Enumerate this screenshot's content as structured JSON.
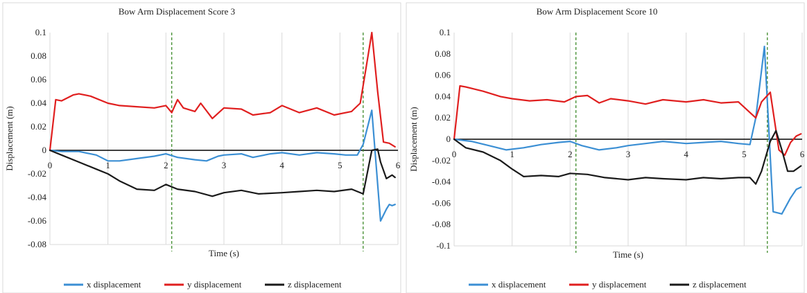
{
  "chart_data": [
    {
      "type": "line",
      "title": "Bow Arm Displacement Score 3",
      "xlabel": "Time (s)",
      "ylabel": "Displacement  (m)",
      "xlim": [
        0,
        6
      ],
      "ylim": [
        -0.08,
        0.1
      ],
      "xticks": [
        0,
        1,
        2,
        3,
        4,
        5,
        6
      ],
      "yticks": [
        -0.08,
        -0.06,
        -0.04,
        -0.02,
        0,
        0.02,
        0.04,
        0.06,
        0.08,
        0.1
      ],
      "ytick_labels": [
        "-0.08",
        "-0.06",
        "-0.04",
        "-0.02",
        "0",
        "0.02",
        "0.04",
        "0.06",
        "0.08",
        "0.1"
      ],
      "grid": true,
      "legend_position": "bottom",
      "vlines": [
        2.1,
        5.4
      ],
      "series": [
        {
          "name": "x displacement",
          "color": "#3b8fd4",
          "x": [
            0,
            0.2,
            0.5,
            0.8,
            1.0,
            1.2,
            1.5,
            1.8,
            2.0,
            2.2,
            2.5,
            2.7,
            2.9,
            3.0,
            3.3,
            3.5,
            3.8,
            4.0,
            4.3,
            4.6,
            4.9,
            5.1,
            5.3,
            5.4,
            5.55,
            5.7,
            5.8,
            5.85,
            5.9,
            5.95
          ],
          "y": [
            0,
            -0.001,
            -0.001,
            -0.004,
            -0.009,
            -0.009,
            -0.007,
            -0.005,
            -0.003,
            -0.006,
            -0.008,
            -0.009,
            -0.005,
            -0.004,
            -0.003,
            -0.006,
            -0.003,
            -0.002,
            -0.004,
            -0.002,
            -0.003,
            -0.004,
            -0.004,
            0.005,
            0.034,
            -0.06,
            -0.05,
            -0.046,
            -0.047,
            -0.046
          ]
        },
        {
          "name": "y displacement",
          "color": "#e01f1f",
          "x": [
            0,
            0.1,
            0.2,
            0.4,
            0.5,
            0.7,
            1.0,
            1.2,
            1.5,
            1.8,
            2.0,
            2.1,
            2.2,
            2.3,
            2.5,
            2.6,
            2.8,
            3.0,
            3.3,
            3.5,
            3.8,
            4.0,
            4.3,
            4.6,
            4.9,
            5.2,
            5.35,
            5.45,
            5.55,
            5.65,
            5.75,
            5.85,
            5.95
          ],
          "y": [
            0,
            0.043,
            0.042,
            0.047,
            0.048,
            0.046,
            0.04,
            0.038,
            0.037,
            0.036,
            0.038,
            0.032,
            0.043,
            0.036,
            0.033,
            0.04,
            0.027,
            0.036,
            0.035,
            0.03,
            0.032,
            0.038,
            0.032,
            0.036,
            0.03,
            0.033,
            0.04,
            0.07,
            0.1,
            0.05,
            0.007,
            0.006,
            0.003
          ]
        },
        {
          "name": "z displacement",
          "color": "#1a1a1a",
          "x": [
            0,
            0.2,
            0.5,
            0.8,
            1.0,
            1.2,
            1.5,
            1.8,
            2.0,
            2.2,
            2.5,
            2.8,
            3.0,
            3.3,
            3.6,
            4.0,
            4.3,
            4.6,
            4.9,
            5.2,
            5.4,
            5.55,
            5.65,
            5.7,
            5.8,
            5.9,
            5.95
          ],
          "y": [
            0,
            -0.004,
            -0.01,
            -0.016,
            -0.02,
            -0.026,
            -0.033,
            -0.034,
            -0.029,
            -0.033,
            -0.035,
            -0.039,
            -0.036,
            -0.034,
            -0.037,
            -0.036,
            -0.035,
            -0.034,
            -0.035,
            -0.033,
            -0.037,
            0.0,
            0.001,
            -0.01,
            -0.024,
            -0.021,
            -0.023
          ]
        }
      ]
    },
    {
      "type": "line",
      "title": "Bow Arm Displacement Score 10",
      "xlabel": "Time (s)",
      "ylabel": "Displacement (m)",
      "xlim": [
        0,
        6
      ],
      "ylim": [
        -0.1,
        0.1
      ],
      "xticks": [
        0,
        1,
        2,
        3,
        4,
        5,
        6
      ],
      "yticks": [
        -0.1,
        -0.08,
        -0.06,
        -0.04,
        -0.02,
        0,
        0.02,
        0.04,
        0.06,
        0.08,
        0.1
      ],
      "ytick_labels": [
        "-0.1",
        "-0.08",
        "-0.06",
        "-0.04",
        "-0.02",
        "0",
        "0.02",
        "0.04",
        "0.06",
        "0.08",
        "0.1"
      ],
      "grid": true,
      "legend_position": "bottom",
      "vlines": [
        2.1,
        5.4
      ],
      "series": [
        {
          "name": "x displacement",
          "color": "#3b8fd4",
          "x": [
            0,
            0.3,
            0.6,
            0.9,
            1.2,
            1.5,
            1.8,
            2.0,
            2.2,
            2.5,
            2.8,
            3.0,
            3.3,
            3.6,
            4.0,
            4.3,
            4.6,
            4.9,
            5.1,
            5.2,
            5.35,
            5.5,
            5.65,
            5.8,
            5.9,
            5.98
          ],
          "y": [
            0,
            -0.002,
            -0.006,
            -0.01,
            -0.008,
            -0.005,
            -0.003,
            -0.002,
            -0.006,
            -0.01,
            -0.008,
            -0.006,
            -0.004,
            -0.002,
            -0.004,
            -0.003,
            -0.002,
            -0.004,
            -0.005,
            0.02,
            0.087,
            -0.068,
            -0.07,
            -0.055,
            -0.047,
            -0.045
          ]
        },
        {
          "name": "y displacement",
          "color": "#e01f1f",
          "x": [
            0,
            0.1,
            0.2,
            0.5,
            0.8,
            1.0,
            1.3,
            1.6,
            1.9,
            2.1,
            2.3,
            2.5,
            2.7,
            3.0,
            3.3,
            3.6,
            4.0,
            4.3,
            4.6,
            4.9,
            5.2,
            5.3,
            5.45,
            5.6,
            5.7,
            5.8,
            5.9,
            5.98
          ],
          "y": [
            0,
            0.05,
            0.049,
            0.045,
            0.04,
            0.038,
            0.036,
            0.037,
            0.035,
            0.04,
            0.041,
            0.034,
            0.038,
            0.036,
            0.033,
            0.037,
            0.035,
            0.037,
            0.034,
            0.035,
            0.02,
            0.035,
            0.044,
            -0.01,
            -0.015,
            -0.003,
            0.003,
            0.005
          ]
        },
        {
          "name": "z displacement",
          "color": "#1a1a1a",
          "x": [
            0,
            0.2,
            0.5,
            0.8,
            1.0,
            1.2,
            1.5,
            1.8,
            2.0,
            2.3,
            2.6,
            3.0,
            3.3,
            3.6,
            4.0,
            4.3,
            4.6,
            4.9,
            5.1,
            5.2,
            5.3,
            5.45,
            5.55,
            5.65,
            5.75,
            5.85,
            5.98
          ],
          "y": [
            0,
            -0.008,
            -0.012,
            -0.02,
            -0.028,
            -0.035,
            -0.034,
            -0.035,
            -0.032,
            -0.033,
            -0.036,
            -0.038,
            -0.036,
            -0.037,
            -0.038,
            -0.036,
            -0.037,
            -0.036,
            -0.036,
            -0.042,
            -0.03,
            -0.002,
            0.008,
            -0.01,
            -0.03,
            -0.03,
            -0.025
          ]
        }
      ]
    }
  ]
}
